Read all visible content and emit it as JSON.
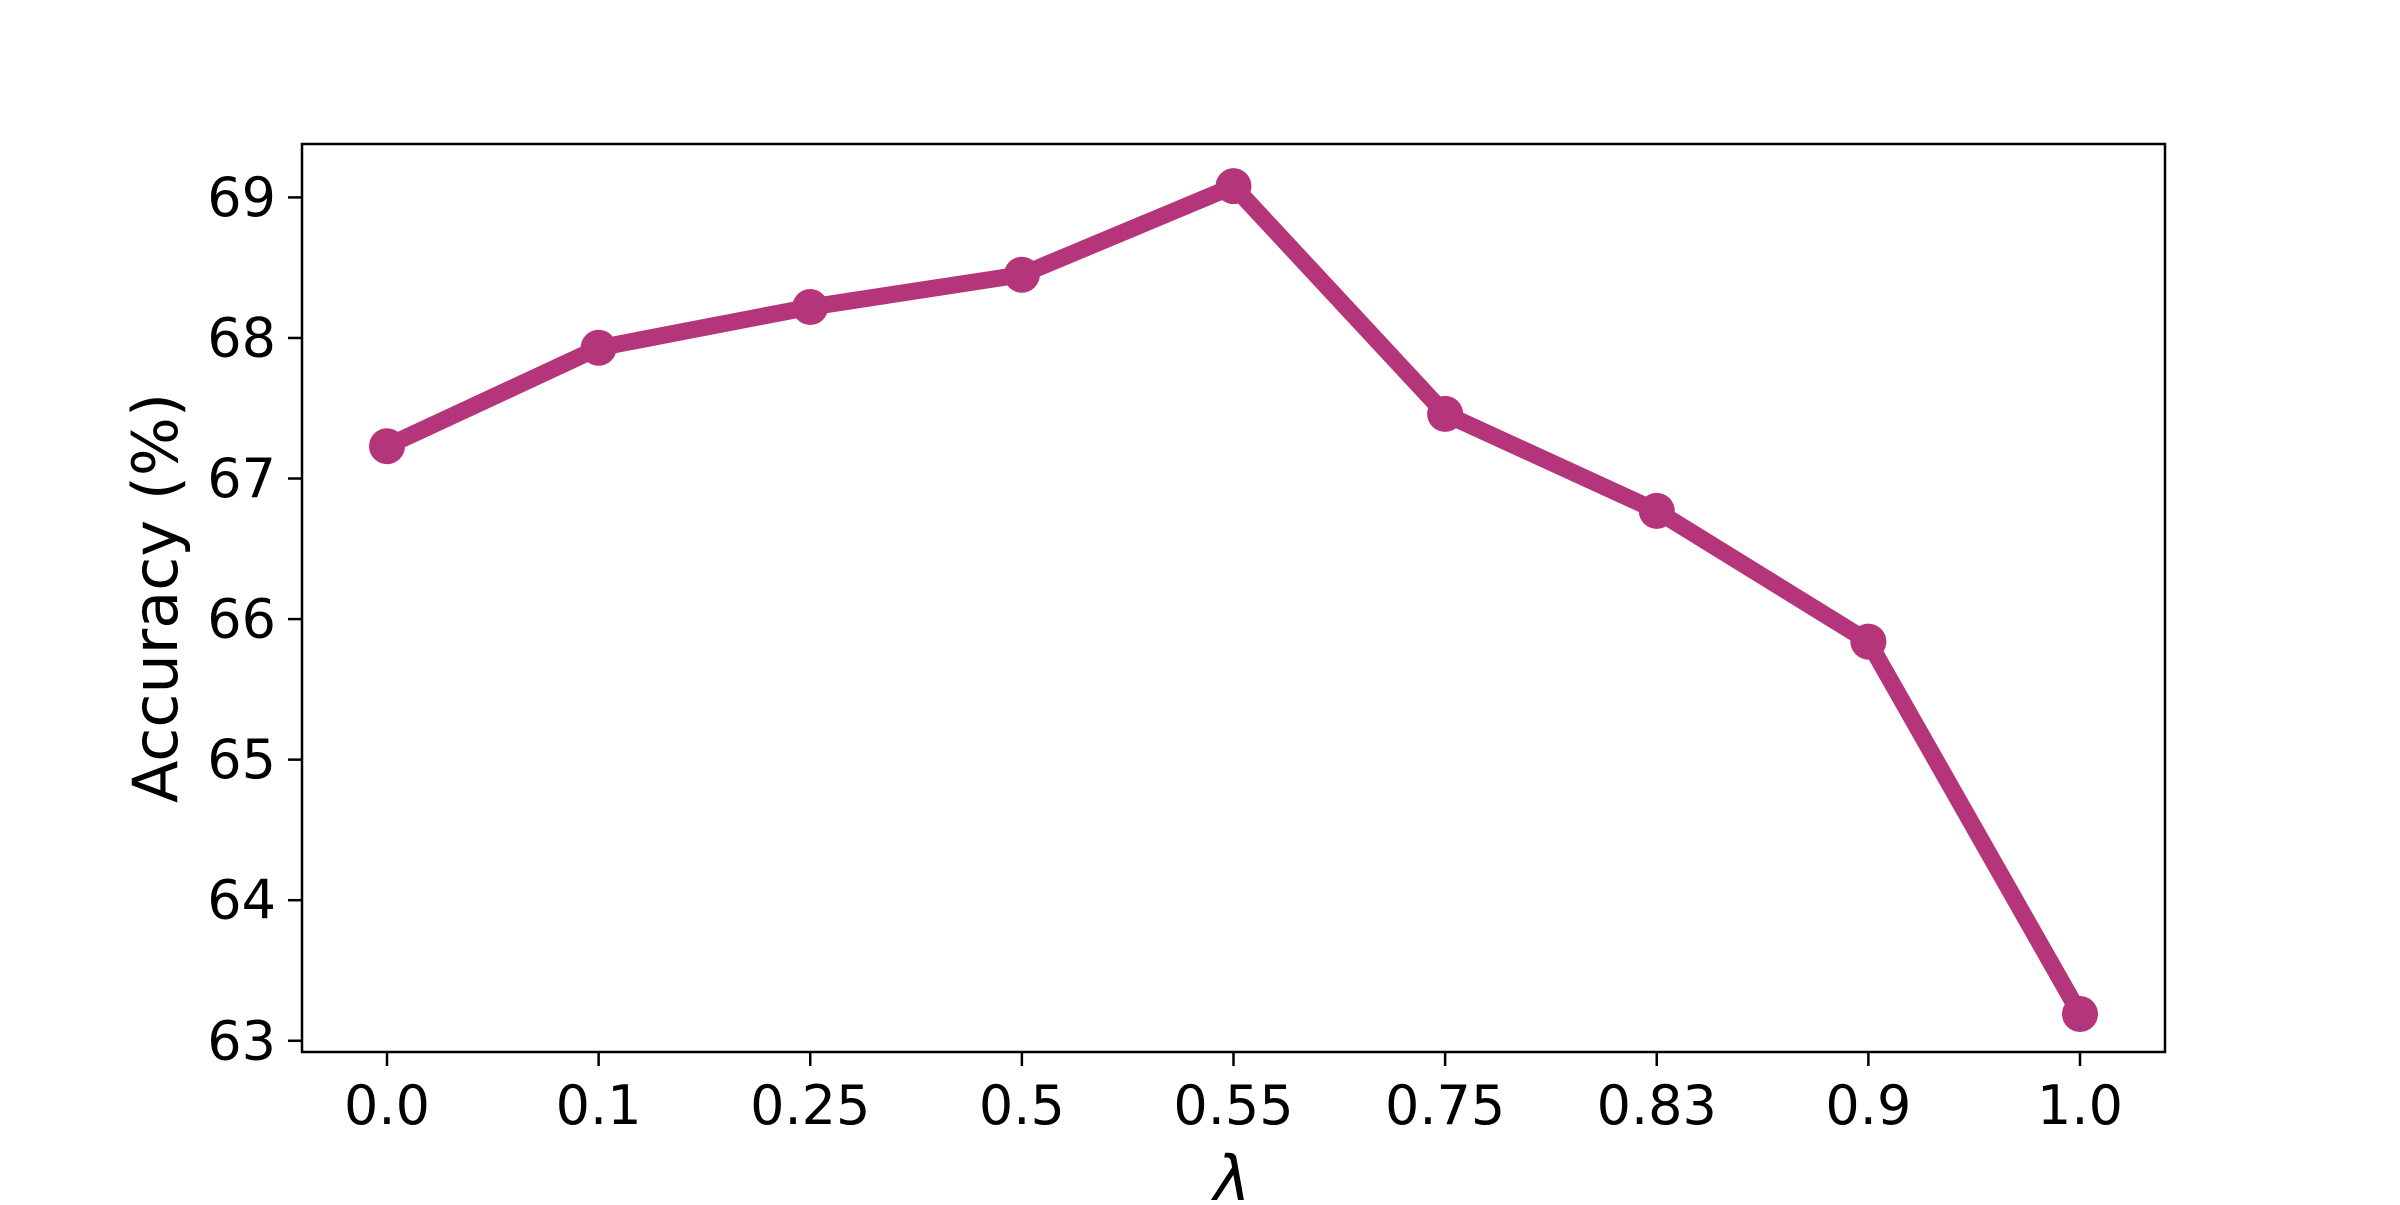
{
  "chart_data": {
    "type": "line",
    "title": "",
    "xlabel": "λ",
    "ylabel": "Accuracy (%)",
    "categories": [
      "0.0",
      "0.1",
      "0.25",
      "0.5",
      "0.55",
      "0.75",
      "0.83",
      "0.9",
      "1.0"
    ],
    "series": [
      {
        "values": [
          67.23,
          67.93,
          68.22,
          68.45,
          69.08,
          67.46,
          66.77,
          65.84,
          63.19
        ],
        "color": "#b5357a",
        "marker": "circle"
      }
    ],
    "yticks": [
      "63",
      "64",
      "65",
      "66",
      "67",
      "68",
      "69"
    ],
    "ylim": [
      62.92,
      69.38
    ],
    "grid": false,
    "legend": "none"
  }
}
